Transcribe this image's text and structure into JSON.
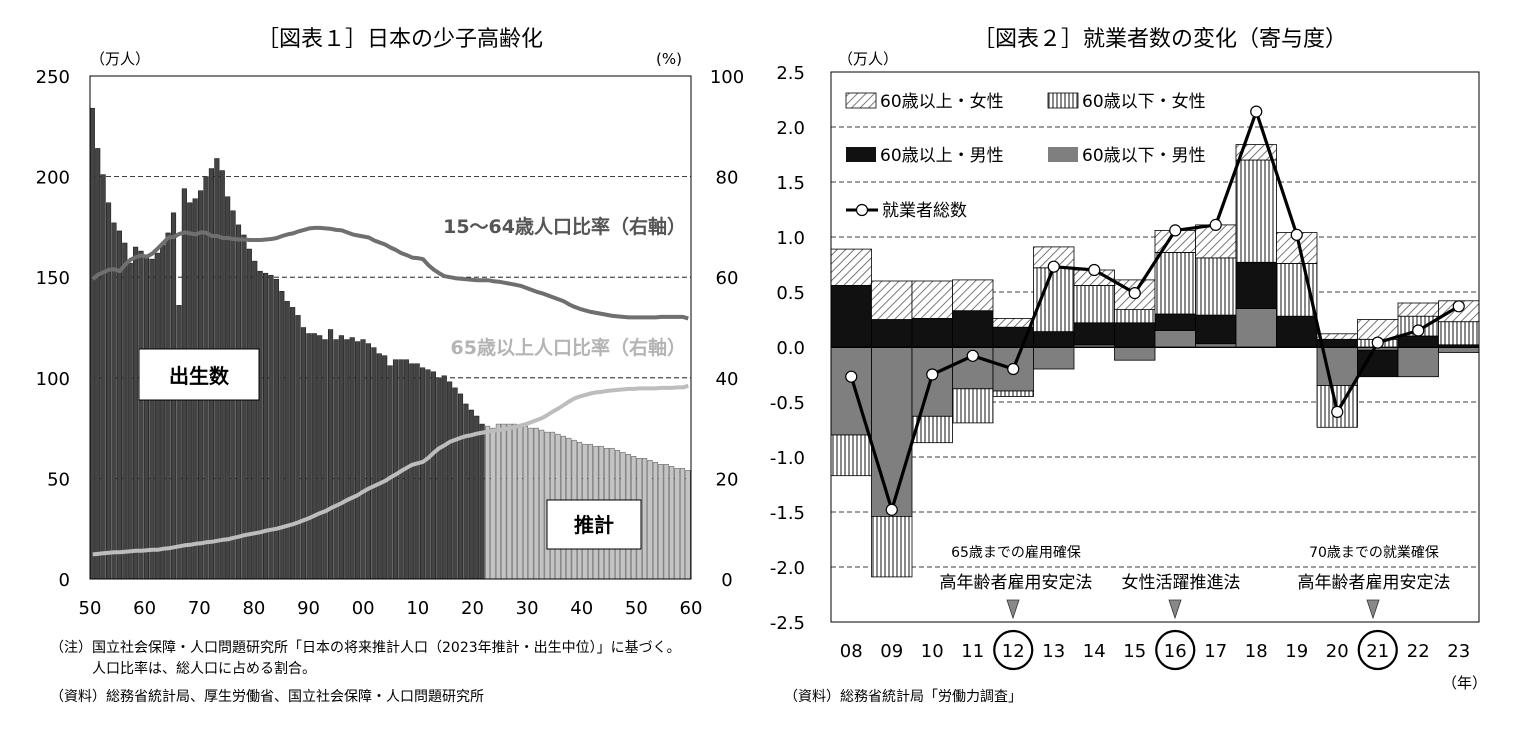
{
  "chart1": {
    "title": "［図表１］日本の少子高齢化",
    "left_unit": "（万人）",
    "right_unit": "(%)",
    "left_ticks": [
      "250",
      "200",
      "150",
      "100",
      "50",
      "0"
    ],
    "right_ticks": [
      "100",
      "80",
      "60",
      "40",
      "20",
      "0"
    ],
    "x_ticks": [
      "50",
      "60",
      "70",
      "80",
      "90",
      "00",
      "10",
      "20",
      "30",
      "40",
      "50",
      "60"
    ],
    "births_label": "出生数",
    "projection_label": "推計",
    "line1_label": "15～64歳人口比率（右軸）",
    "line2_label": "65歳以上人口比率（右軸）",
    "notes": [
      "（注）国立社会保障・人口問題研究所「日本の将来推計人口（2023年推計・出生中位）」に基づく。",
      "　　　人口比率は、総人口に占める割合。",
      "（資料）総務省統計局、厚生労働省、国立社会保障・人口問題研究所"
    ]
  },
  "chart2": {
    "title": "［図表２］就業者数の変化（寄与度）",
    "unit": "（万人）",
    "y_ticks": [
      "2.5",
      "2.0",
      "1.5",
      "1.0",
      "0.5",
      "0.0",
      "-0.5",
      "-1.0",
      "-1.5",
      "-2.0",
      "-2.5"
    ],
    "x_ticks": [
      "08",
      "09",
      "10",
      "11",
      "12",
      "13",
      "14",
      "15",
      "16",
      "17",
      "18",
      "19",
      "20",
      "21",
      "22",
      "23"
    ],
    "x_unit": "（年）",
    "legend": [
      "60歳以上・女性",
      "60歳以下・女性",
      "60歳以上・男性",
      "60歳以下・男性",
      "就業者総数"
    ],
    "annotations": [
      {
        "small": "65歳までの雇用確保",
        "main": "高年齢者雇用安定法"
      },
      {
        "small": "",
        "main": "女性活躍推進法"
      },
      {
        "small": "70歳までの就業確保",
        "main": "高年齢者雇用安定法"
      }
    ],
    "source": "（資料）総務省統計局「労働力調査」"
  },
  "chart_data": [
    {
      "type": "bar",
      "title": "［図表１］日本の少子高齢化",
      "ylabel": "万人",
      "ylim": [
        0,
        250
      ],
      "y2lim": [
        0,
        100
      ],
      "x": [
        1950,
        1951,
        1952,
        1953,
        1954,
        1955,
        1956,
        1957,
        1958,
        1959,
        1960,
        1961,
        1962,
        1963,
        1964,
        1965,
        1966,
        1967,
        1968,
        1969,
        1970,
        1971,
        1972,
        1973,
        1974,
        1975,
        1976,
        1977,
        1978,
        1979,
        1980,
        1981,
        1982,
        1983,
        1984,
        1985,
        1986,
        1987,
        1988,
        1989,
        1990,
        1991,
        1992,
        1993,
        1994,
        1995,
        1996,
        1997,
        1998,
        1999,
        2000,
        2001,
        2002,
        2003,
        2004,
        2005,
        2006,
        2007,
        2008,
        2009,
        2010,
        2011,
        2012,
        2013,
        2014,
        2015,
        2016,
        2017,
        2018,
        2019,
        2020,
        2021,
        2022,
        2023,
        2024,
        2025,
        2026,
        2027,
        2028,
        2029,
        2030,
        2031,
        2032,
        2033,
        2034,
        2035,
        2036,
        2037,
        2038,
        2039,
        2040,
        2041,
        2042,
        2043,
        2044,
        2045,
        2046,
        2047,
        2048,
        2049,
        2050,
        2051,
        2052,
        2053,
        2054,
        2055,
        2056,
        2057,
        2058,
        2059,
        2060
      ],
      "series": [
        {
          "name": "出生数",
          "values": [
            234,
            214,
            201,
            187,
            177,
            173,
            167,
            157,
            165,
            163,
            161,
            159,
            162,
            166,
            172,
            182,
            136,
            194,
            187,
            189,
            193,
            200,
            204,
            209,
            203,
            190,
            183,
            176,
            171,
            164,
            158,
            153,
            152,
            151,
            149,
            143,
            138,
            135,
            131,
            125,
            122,
            122,
            121,
            119,
            124,
            119,
            121,
            119,
            120,
            118,
            119,
            117,
            115,
            112,
            111,
            106,
            109,
            109,
            109,
            107,
            107,
            105,
            104,
            103,
            100,
            101,
            98,
            95,
            92,
            87,
            84,
            81,
            77,
            76,
            75,
            77,
            77,
            77,
            77,
            76,
            76,
            75,
            75,
            74,
            73,
            73,
            72,
            71,
            70,
            69,
            68,
            67,
            67,
            66,
            66,
            65,
            65,
            64,
            63,
            62,
            61,
            60,
            60,
            59,
            58,
            57,
            57,
            56,
            55,
            55,
            54
          ]
        },
        {
          "name": "15～64歳人口比率（右軸）",
          "values": [
            59.6,
            60.5,
            61.0,
            61.5,
            61.6,
            61.2,
            62.5,
            63.5,
            64.0,
            64.3,
            64.1,
            64.7,
            65.7,
            66.8,
            67.9,
            68.0,
            68.6,
            68.9,
            68.7,
            68.5,
            68.9,
            68.8,
            68.2,
            68.2,
            67.8,
            67.8,
            67.6,
            67.5,
            67.5,
            67.4,
            67.4,
            67.4,
            67.5,
            67.6,
            67.8,
            68.2,
            68.5,
            68.7,
            69.1,
            69.4,
            69.7,
            69.8,
            69.8,
            69.7,
            69.6,
            69.4,
            69.3,
            68.9,
            68.5,
            68.3,
            68.1,
            67.9,
            67.3,
            66.9,
            66.5,
            65.9,
            65.4,
            64.8,
            64.4,
            63.9,
            63.8,
            63.6,
            62.4,
            61.5,
            60.8,
            60.2,
            60.0,
            59.8,
            59.7,
            59.6,
            59.5,
            59.4,
            59.4,
            59.4,
            59.2,
            59.1,
            58.9,
            58.7,
            58.5,
            58.3,
            57.9,
            57.5,
            57.1,
            56.8,
            56.4,
            56.0,
            55.6,
            55.2,
            54.6,
            54.1,
            53.7,
            53.4,
            53.1,
            52.9,
            52.7,
            52.5,
            52.3,
            52.2,
            52.1,
            52.0,
            52.0,
            52.0,
            52.0,
            52.0,
            52.0,
            52.1,
            52.1,
            52.1,
            52.1,
            52.1,
            51.8
          ]
        },
        {
          "name": "65歳以上人口比率（右軸）",
          "values": [
            4.9,
            5.0,
            5.1,
            5.2,
            5.3,
            5.3,
            5.4,
            5.5,
            5.6,
            5.6,
            5.7,
            5.8,
            5.8,
            6.0,
            6.1,
            6.3,
            6.5,
            6.7,
            6.8,
            7.0,
            7.1,
            7.3,
            7.4,
            7.6,
            7.8,
            7.9,
            8.2,
            8.4,
            8.7,
            8.9,
            9.1,
            9.3,
            9.6,
            9.8,
            10.0,
            10.3,
            10.6,
            10.9,
            11.3,
            11.7,
            12.1,
            12.6,
            13.1,
            13.5,
            14.1,
            14.6,
            15.1,
            15.7,
            16.2,
            16.7,
            17.4,
            18.0,
            18.5,
            19.0,
            19.5,
            20.2,
            20.8,
            21.5,
            22.1,
            22.7,
            23.0,
            23.3,
            24.1,
            25.1,
            26.0,
            26.6,
            27.3,
            27.7,
            28.1,
            28.4,
            28.6,
            28.9,
            29.1,
            29.3,
            29.5,
            29.6,
            29.8,
            30.0,
            30.2,
            30.5,
            30.8,
            31.2,
            31.6,
            32.0,
            32.6,
            33.3,
            33.9,
            34.6,
            35.3,
            35.9,
            36.3,
            36.6,
            36.9,
            37.1,
            37.2,
            37.4,
            37.5,
            37.6,
            37.7,
            37.8,
            37.8,
            37.9,
            37.9,
            37.9,
            37.9,
            38.0,
            38.0,
            38.0,
            38.1,
            38.1,
            38.4
          ]
        }
      ]
    },
    {
      "type": "bar",
      "title": "［図表２］就業者数の変化（寄与度）",
      "ylabel": "万人",
      "ylim": [
        -2.5,
        2.5
      ],
      "categories": [
        "08",
        "09",
        "10",
        "11",
        "12",
        "13",
        "14",
        "15",
        "16",
        "17",
        "18",
        "19",
        "20",
        "21",
        "22",
        "23"
      ],
      "series": [
        {
          "name": "60歳以上・女性",
          "values": [
            0.33,
            0.35,
            0.34,
            0.28,
            0.08,
            0.19,
            0.14,
            0.27,
            0.2,
            0.3,
            0.14,
            0.28,
            0.05,
            0.18,
            0.12,
            0.19
          ]
        },
        {
          "name": "60歳以下・女性",
          "values": [
            -0.37,
            -0.55,
            -0.24,
            -0.31,
            -0.05,
            0.58,
            0.34,
            0.12,
            0.56,
            0.52,
            0.93,
            0.48,
            -0.38,
            0.07,
            0.18,
            0.21
          ]
        },
        {
          "name": "60歳以上・男性",
          "values": [
            0.56,
            0.25,
            0.26,
            0.33,
            0.18,
            0.14,
            0.2,
            0.22,
            0.15,
            0.26,
            0.42,
            0.28,
            0.07,
            -0.24,
            0.1,
            0.02
          ]
        },
        {
          "name": "60歳以下・男性",
          "values": [
            -0.8,
            -1.54,
            -0.63,
            -0.38,
            -0.4,
            -0.2,
            0.02,
            -0.12,
            0.15,
            0.03,
            0.35,
            0.0,
            -0.35,
            -0.03,
            -0.27,
            -0.05
          ]
        },
        {
          "name": "就業者総数",
          "values": [
            -0.27,
            -1.48,
            -0.25,
            -0.08,
            -0.2,
            0.73,
            0.7,
            0.49,
            1.06,
            1.11,
            2.14,
            1.02,
            -0.59,
            0.04,
            0.15,
            0.37
          ]
        }
      ]
    }
  ]
}
